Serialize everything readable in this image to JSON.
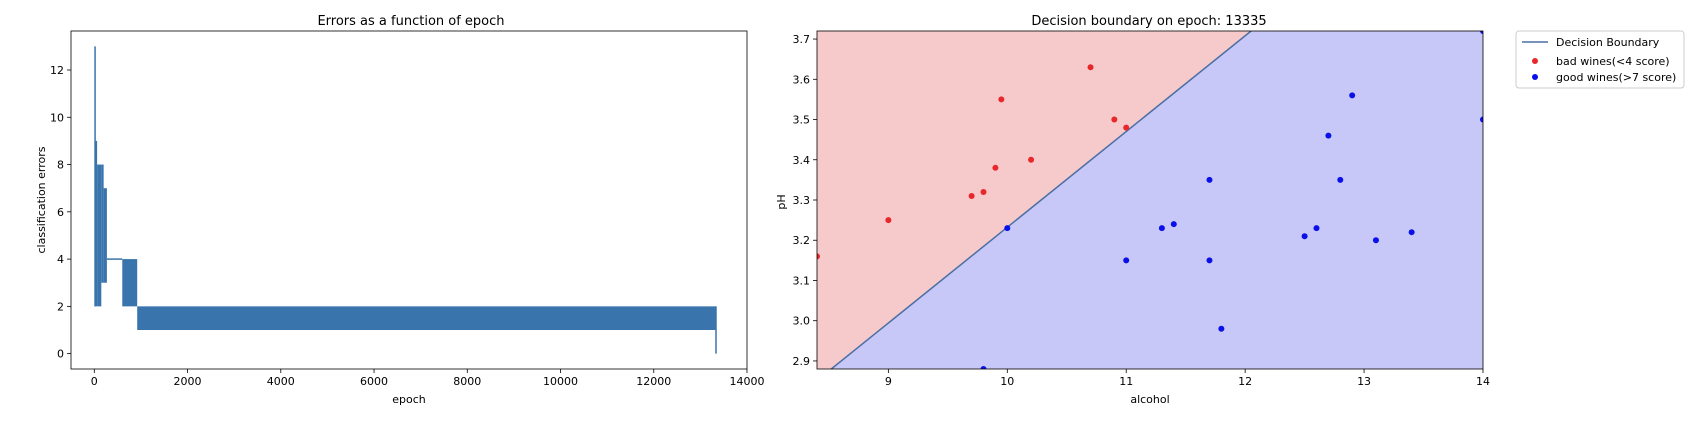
{
  "chart_data": [
    {
      "type": "line",
      "title": "Errors as a function of epoch",
      "xlabel": "epoch",
      "ylabel": "classification errors",
      "xlim": [
        -500,
        14000
      ],
      "ylim": [
        -0.65,
        13.65
      ],
      "x_ticks": [
        0,
        2000,
        4000,
        6000,
        8000,
        10000,
        12000,
        14000
      ],
      "y_ticks": [
        0,
        2,
        4,
        6,
        8,
        10,
        12
      ],
      "grid": false,
      "legend": "none",
      "series_color": "#3a74ad",
      "series": [
        {
          "style": "step-oscillation",
          "segments": [
            {
              "x_start": 0,
              "x_end": 10,
              "y_low": 2,
              "y_high": 13
            },
            {
              "x_start": 10,
              "x_end": 60,
              "y_low": 2,
              "y_high": 9
            },
            {
              "x_start": 60,
              "x_end": 150,
              "y_low": 2,
              "y_high": 8
            },
            {
              "x_start": 150,
              "x_end": 200,
              "y_low": 3,
              "y_high": 8
            },
            {
              "x_start": 200,
              "x_end": 270,
              "y_low": 3,
              "y_high": 7
            },
            {
              "x_start": 270,
              "x_end": 600,
              "y_low": 4,
              "y_high": 4
            },
            {
              "x_start": 600,
              "x_end": 920,
              "y_low": 2,
              "y_high": 4
            },
            {
              "x_start": 920,
              "x_end": 13335,
              "y_low": 1,
              "y_high": 2
            }
          ],
          "final": {
            "x": 13335,
            "y": 0
          }
        }
      ]
    },
    {
      "type": "scatter",
      "title": "Decision boundary on epoch: 13335",
      "xlabel": "alcohol",
      "ylabel": "pH",
      "xlim": [
        8.4,
        14.0
      ],
      "ylim": [
        2.88,
        3.72
      ],
      "x_ticks": [
        9,
        10,
        11,
        12,
        13,
        14
      ],
      "y_ticks": [
        2.9,
        3.0,
        3.1,
        3.2,
        3.3,
        3.4,
        3.5,
        3.6,
        3.7
      ],
      "grid": false,
      "legend": "outside-top-right",
      "regions": {
        "bad": "#f6caca",
        "good": "#c8c8f8"
      },
      "decision_boundary": {
        "name": "Decision Boundary",
        "color": "#4a6fa5",
        "points": [
          [
            8.52,
            2.88
          ],
          [
            12.05,
            3.72
          ]
        ]
      },
      "series": [
        {
          "name": "bad wines(<4 score)",
          "color": "#e8272a",
          "points": [
            [
              8.4,
              3.16
            ],
            [
              9.0,
              3.25
            ],
            [
              9.7,
              3.31
            ],
            [
              9.8,
              3.32
            ],
            [
              9.9,
              3.38
            ],
            [
              9.95,
              3.55
            ],
            [
              10.2,
              3.4
            ],
            [
              10.7,
              3.63
            ],
            [
              10.9,
              3.5
            ],
            [
              11.0,
              3.48
            ]
          ]
        },
        {
          "name": "good wines(>7 score)",
          "color": "#0a10e8",
          "points": [
            [
              9.8,
              2.88
            ],
            [
              10.0,
              3.23
            ],
            [
              11.0,
              3.15
            ],
            [
              11.3,
              3.23
            ],
            [
              11.4,
              3.24
            ],
            [
              11.7,
              3.35
            ],
            [
              11.7,
              3.15
            ],
            [
              11.8,
              2.98
            ],
            [
              12.5,
              3.21
            ],
            [
              12.6,
              3.23
            ],
            [
              12.7,
              3.46
            ],
            [
              12.8,
              3.35
            ],
            [
              12.9,
              3.56
            ],
            [
              13.1,
              3.2
            ],
            [
              13.4,
              3.22
            ],
            [
              14.0,
              3.5
            ],
            [
              14.0,
              3.72
            ]
          ]
        }
      ]
    }
  ]
}
